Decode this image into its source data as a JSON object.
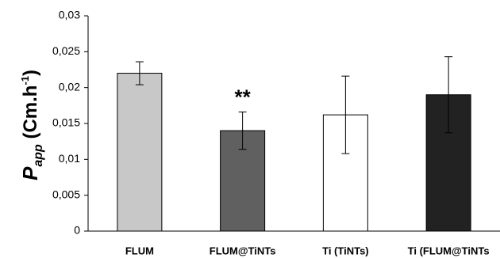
{
  "chart_data": {
    "type": "bar",
    "ylabel_parts": [
      {
        "text": "P",
        "role": "main"
      },
      {
        "text": "app",
        "role": "sub"
      },
      {
        "text": " (Cm.h",
        "role": "main"
      },
      {
        "text": "-1",
        "role": "sup"
      },
      {
        "text": ")",
        "role": "main"
      }
    ],
    "categories": [
      "FLUM",
      "FLUM@TiNTs",
      "Ti (TiNTs)",
      "Ti (FLUM@TiNTs"
    ],
    "values": [
      0.022,
      0.014,
      0.0162,
      0.019
    ],
    "errors": [
      0.0016,
      0.0026,
      0.0054,
      0.0053
    ],
    "colors": [
      "#c8c8c8",
      "#606060",
      "#ffffff",
      "#222222"
    ],
    "annotations": [
      {
        "text": "**",
        "category": 1
      }
    ],
    "ylim": [
      0,
      0.03
    ],
    "yticks": [
      0,
      {
        "value": 0.005,
        "label": "0,005"
      },
      {
        "value": 0.01,
        "label": "0,01"
      },
      {
        "value": 0.015,
        "label": "0,015"
      },
      {
        "value": 0.02,
        "label": "0,02"
      },
      {
        "value": 0.025,
        "label": "0,025"
      },
      {
        "value": 0.03,
        "label": "0,03"
      }
    ],
    "grid": false
  }
}
